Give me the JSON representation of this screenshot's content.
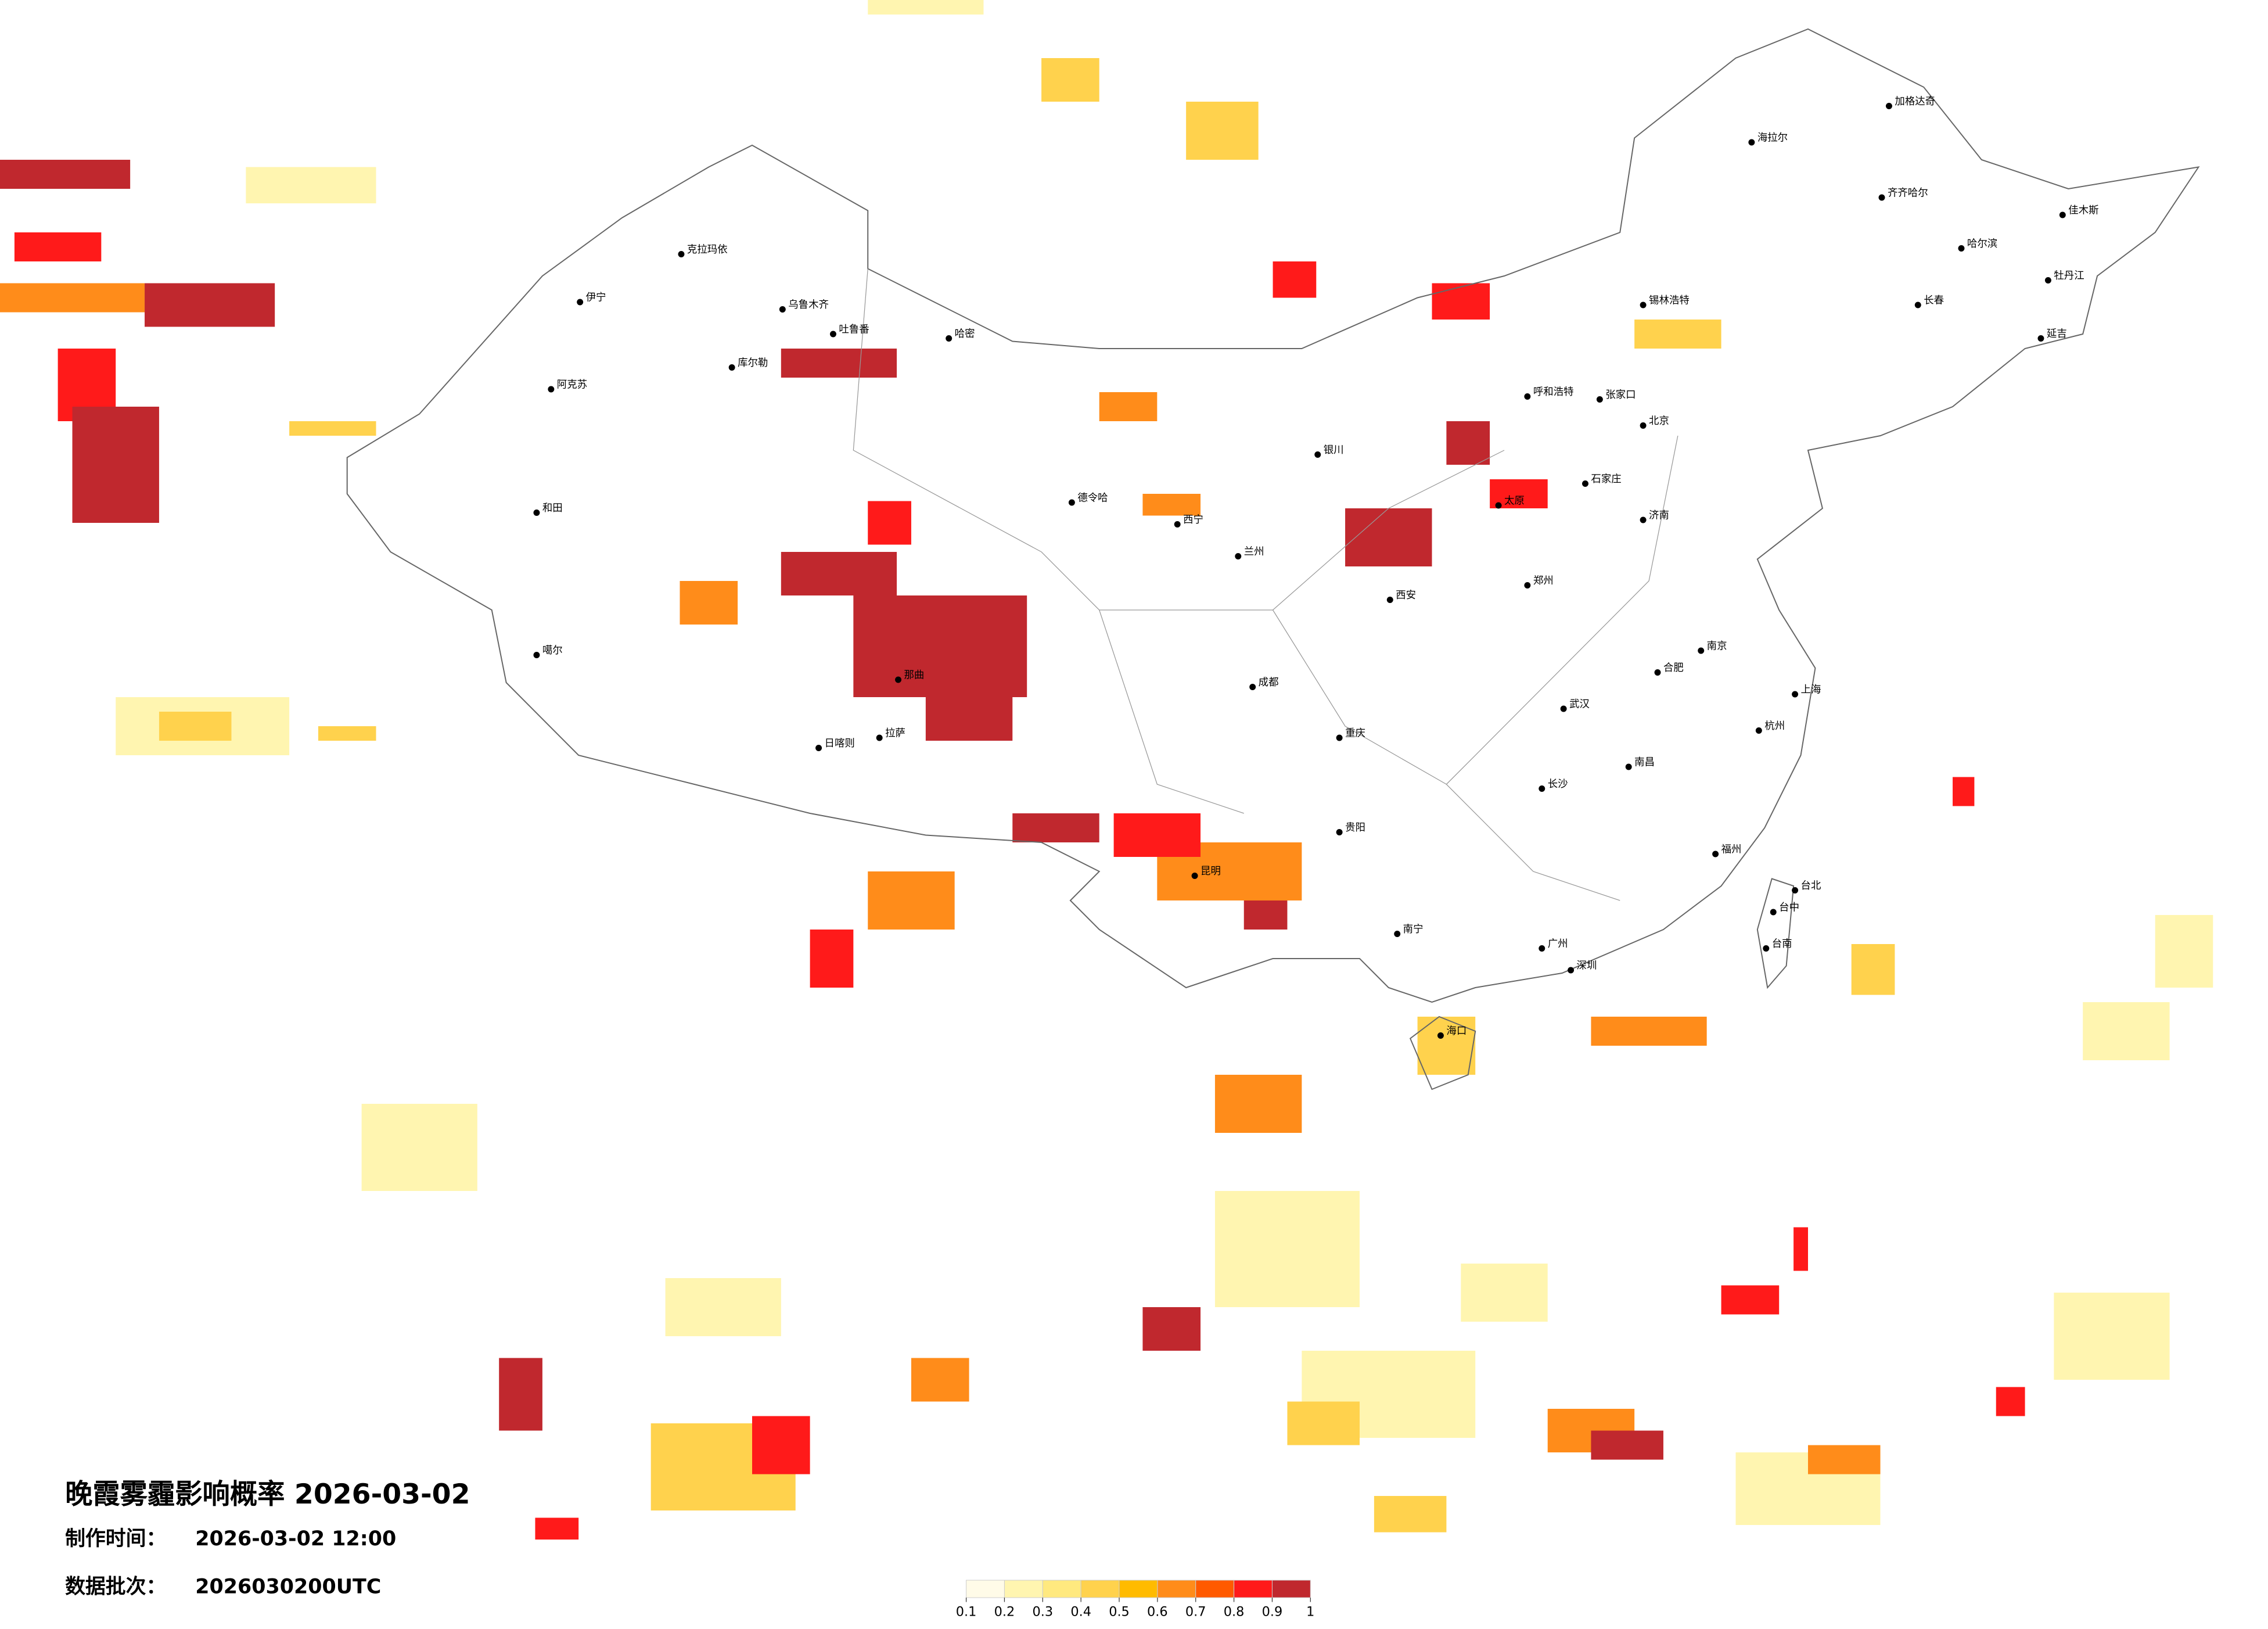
{
  "title": "晚霞雾霾影响概率 2026-03-02",
  "info": [
    {
      "label": "制作时间：",
      "value": "2026-03-02 12:00"
    },
    {
      "label": "数据批次：",
      "value": "2026030200UTC"
    }
  ],
  "colorbar": {
    "clim": [
      0.1,
      1
    ],
    "ticks": [
      0.1,
      0.2,
      0.3,
      0.4,
      0.5,
      0.6,
      0.7,
      0.8,
      0.9,
      1
    ],
    "colors": [
      "#fffbe8",
      "#fff5b0",
      "#ffe97f",
      "#ffd24d",
      "#ffbb00",
      "#ff8c1a",
      "#ff5a00",
      "#ff1a1a",
      "#c0282e"
    ]
  },
  "cities": [
    "海拉尔",
    "加格达奇",
    "齐齐哈尔",
    "哈尔滨",
    "长春",
    "锡林浩特",
    "呼和浩特",
    "张家口",
    "乌鲁木齐",
    "克拉玛依",
    "伊宁",
    "阿克苏",
    "和田",
    "哈密",
    "吐鲁番",
    "库尔勒",
    "德令哈",
    "噶尔",
    "日喀则",
    "拉萨",
    "那曲",
    "西宁",
    "兰州",
    "银川",
    "西安",
    "郑州",
    "济南",
    "石家庄",
    "太原",
    "武汉",
    "长沙",
    "南昌",
    "福州",
    "杭州",
    "南京",
    "合肥",
    "昆明",
    "贵阳",
    "南宁",
    "重庆",
    "海口",
    "台北",
    "台中",
    "台南",
    "延吉",
    "牡丹江",
    "佳木斯",
    "北京",
    "上海",
    "广州",
    "深圳",
    "成都"
  ]
}
